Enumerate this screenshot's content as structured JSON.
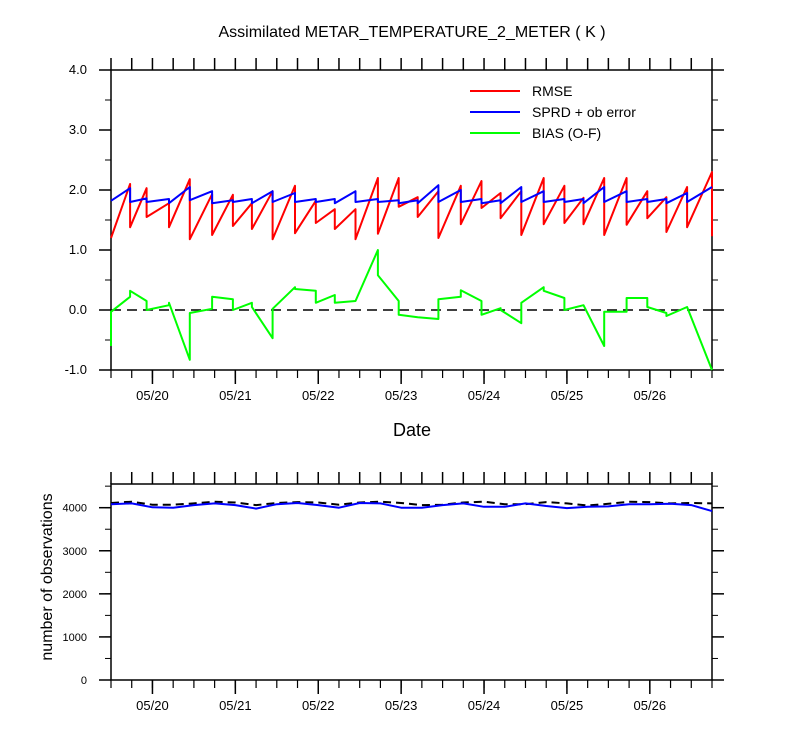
{
  "chart_data": [
    {
      "type": "line",
      "title": "Assimilated METAR_TEMPERATURE_2_METER ( K )",
      "xlabel": "Date",
      "ylabel": "",
      "ylim": [
        -1.0,
        4.0
      ],
      "xlim": [
        -0.5,
        6.75
      ],
      "yticks": [
        "4.0",
        "3.0",
        "2.0",
        "1.0",
        "0.0",
        "-1.0"
      ],
      "ytick_values": [
        4,
        3,
        2,
        1,
        0,
        -1
      ],
      "xtick_labels": [
        "05/20",
        "05/21",
        "05/22",
        "05/23",
        "05/24",
        "05/25",
        "05/26"
      ],
      "xtick_values": [
        0,
        1,
        2,
        3,
        4,
        5,
        6
      ],
      "legend_position": "top-right",
      "colors": {
        "RMSE": "#ff0000",
        "SPRD": "#0000ff",
        "BIAS": "#00ff00",
        "zero_line": "#000000"
      },
      "series": [
        {
          "name": "RMSE",
          "color": "#ff0000",
          "points": [
            [
              -0.5,
              1.2
            ],
            [
              -0.27,
              2.1
            ],
            [
              -0.27,
              1.38
            ],
            [
              -0.07,
              2.03
            ],
            [
              -0.07,
              1.55
            ],
            [
              0.2,
              1.78
            ],
            [
              0.2,
              1.38
            ],
            [
              0.45,
              2.18
            ],
            [
              0.45,
              1.18
            ],
            [
              0.72,
              1.93
            ],
            [
              0.72,
              1.25
            ],
            [
              0.97,
              1.92
            ],
            [
              0.97,
              1.4
            ],
            [
              1.2,
              1.78
            ],
            [
              1.2,
              1.35
            ],
            [
              1.45,
              1.98
            ],
            [
              1.45,
              1.18
            ],
            [
              1.72,
              2.07
            ],
            [
              1.72,
              1.28
            ],
            [
              1.97,
              1.82
            ],
            [
              1.97,
              1.45
            ],
            [
              2.2,
              1.68
            ],
            [
              2.2,
              1.35
            ],
            [
              2.45,
              1.68
            ],
            [
              2.45,
              1.18
            ],
            [
              2.72,
              2.2
            ],
            [
              2.72,
              1.27
            ],
            [
              2.97,
              2.2
            ],
            [
              2.97,
              1.72
            ],
            [
              3.2,
              1.88
            ],
            [
              3.2,
              1.55
            ],
            [
              3.45,
              1.98
            ],
            [
              3.45,
              1.2
            ],
            [
              3.72,
              2.07
            ],
            [
              3.72,
              1.43
            ],
            [
              3.97,
              2.15
            ],
            [
              3.97,
              1.7
            ],
            [
              4.2,
              1.95
            ],
            [
              4.2,
              1.53
            ],
            [
              4.45,
              1.98
            ],
            [
              4.45,
              1.25
            ],
            [
              4.72,
              2.2
            ],
            [
              4.72,
              1.43
            ],
            [
              4.97,
              2.07
            ],
            [
              4.97,
              1.45
            ],
            [
              5.2,
              1.87
            ],
            [
              5.2,
              1.43
            ],
            [
              5.45,
              2.2
            ],
            [
              5.45,
              1.25
            ],
            [
              5.72,
              2.2
            ],
            [
              5.72,
              1.42
            ],
            [
              5.97,
              1.98
            ],
            [
              5.97,
              1.53
            ],
            [
              6.2,
              1.88
            ],
            [
              6.2,
              1.3
            ],
            [
              6.45,
              2.05
            ],
            [
              6.45,
              1.38
            ],
            [
              6.75,
              2.3
            ],
            [
              6.75,
              1.23
            ]
          ]
        },
        {
          "name": "SPRD + ob error",
          "color": "#0000ff",
          "points": [
            [
              -0.5,
              1.82
            ],
            [
              -0.27,
              2.03
            ],
            [
              -0.27,
              1.8
            ],
            [
              -0.07,
              1.86
            ],
            [
              -0.07,
              1.8
            ],
            [
              0.2,
              1.85
            ],
            [
              0.2,
              1.78
            ],
            [
              0.45,
              2.05
            ],
            [
              0.45,
              1.83
            ],
            [
              0.72,
              1.98
            ],
            [
              0.72,
              1.78
            ],
            [
              0.97,
              1.83
            ],
            [
              0.97,
              1.8
            ],
            [
              1.2,
              1.85
            ],
            [
              1.2,
              1.78
            ],
            [
              1.45,
              1.98
            ],
            [
              1.45,
              1.8
            ],
            [
              1.72,
              1.95
            ],
            [
              1.72,
              1.8
            ],
            [
              1.97,
              1.85
            ],
            [
              1.97,
              1.8
            ],
            [
              2.2,
              1.85
            ],
            [
              2.2,
              1.78
            ],
            [
              2.45,
              1.98
            ],
            [
              2.45,
              1.8
            ],
            [
              2.72,
              1.85
            ],
            [
              2.72,
              1.8
            ],
            [
              2.97,
              1.83
            ],
            [
              2.97,
              1.78
            ],
            [
              3.2,
              1.83
            ],
            [
              3.2,
              1.78
            ],
            [
              3.45,
              2.08
            ],
            [
              3.45,
              1.8
            ],
            [
              3.72,
              2.0
            ],
            [
              3.72,
              1.8
            ],
            [
              3.97,
              1.85
            ],
            [
              3.97,
              1.78
            ],
            [
              4.2,
              1.83
            ],
            [
              4.2,
              1.78
            ],
            [
              4.45,
              2.05
            ],
            [
              4.45,
              1.8
            ],
            [
              4.72,
              1.98
            ],
            [
              4.72,
              1.8
            ],
            [
              4.97,
              1.85
            ],
            [
              4.97,
              1.8
            ],
            [
              5.2,
              1.85
            ],
            [
              5.2,
              1.78
            ],
            [
              5.45,
              2.05
            ],
            [
              5.45,
              1.8
            ],
            [
              5.72,
              1.98
            ],
            [
              5.72,
              1.8
            ],
            [
              5.97,
              1.85
            ],
            [
              5.97,
              1.8
            ],
            [
              6.2,
              1.85
            ],
            [
              6.2,
              1.78
            ],
            [
              6.45,
              1.95
            ],
            [
              6.45,
              1.8
            ],
            [
              6.75,
              2.05
            ]
          ]
        },
        {
          "name": "BIAS (O-F)",
          "color": "#00ff00",
          "points": [
            [
              -0.5,
              -0.6
            ],
            [
              -0.5,
              -0.03
            ],
            [
              -0.27,
              0.22
            ],
            [
              -0.27,
              0.32
            ],
            [
              -0.07,
              0.15
            ],
            [
              -0.07,
              0.0
            ],
            [
              0.2,
              0.08
            ],
            [
              0.2,
              0.12
            ],
            [
              0.45,
              -0.83
            ],
            [
              0.45,
              -0.05
            ],
            [
              0.72,
              0.02
            ],
            [
              0.72,
              0.22
            ],
            [
              0.97,
              0.18
            ],
            [
              0.97,
              0.0
            ],
            [
              1.2,
              0.12
            ],
            [
              1.2,
              0.05
            ],
            [
              1.45,
              -0.47
            ],
            [
              1.45,
              0.02
            ],
            [
              1.72,
              0.38
            ],
            [
              1.72,
              0.35
            ],
            [
              1.97,
              0.32
            ],
            [
              1.97,
              0.12
            ],
            [
              2.2,
              0.25
            ],
            [
              2.2,
              0.12
            ],
            [
              2.45,
              0.15
            ],
            [
              2.45,
              0.15
            ],
            [
              2.72,
              1.0
            ],
            [
              2.72,
              0.58
            ],
            [
              2.97,
              0.15
            ],
            [
              2.97,
              -0.08
            ],
            [
              3.2,
              -0.12
            ],
            [
              3.45,
              -0.15
            ],
            [
              3.45,
              0.18
            ],
            [
              3.72,
              0.22
            ],
            [
              3.72,
              0.33
            ],
            [
              3.97,
              0.15
            ],
            [
              3.97,
              -0.08
            ],
            [
              4.2,
              0.03
            ],
            [
              4.2,
              0.0
            ],
            [
              4.45,
              -0.22
            ],
            [
              4.45,
              0.12
            ],
            [
              4.72,
              0.38
            ],
            [
              4.72,
              0.32
            ],
            [
              4.97,
              0.2
            ],
            [
              4.97,
              0.0
            ],
            [
              5.2,
              0.08
            ],
            [
              5.2,
              0.08
            ],
            [
              5.45,
              -0.6
            ],
            [
              5.45,
              -0.03
            ],
            [
              5.72,
              -0.03
            ],
            [
              5.72,
              0.2
            ],
            [
              5.97,
              0.2
            ],
            [
              5.97,
              0.05
            ],
            [
              6.2,
              -0.05
            ],
            [
              6.2,
              -0.1
            ],
            [
              6.45,
              0.05
            ],
            [
              6.75,
              -1.0
            ]
          ]
        }
      ]
    },
    {
      "type": "line",
      "title": "",
      "xlabel": "",
      "ylabel": "number of observations",
      "ylim": [
        0,
        4550
      ],
      "xlim": [
        -0.5,
        6.75
      ],
      "yticks": [
        "0",
        "1000",
        "2000",
        "3000",
        "4000"
      ],
      "ytick_values": [
        0,
        1000,
        2000,
        3000,
        4000
      ],
      "xtick_labels": [
        "05/20",
        "05/21",
        "05/22",
        "05/23",
        "05/24",
        "05/25",
        "05/26"
      ],
      "xtick_values": [
        0,
        1,
        2,
        3,
        4,
        5,
        6
      ],
      "series": [
        {
          "role": "possible",
          "color": "#000000",
          "dash": true,
          "points": [
            [
              -0.5,
              4110
            ],
            [
              -0.25,
              4140
            ],
            [
              0,
              4070
            ],
            [
              0.25,
              4070
            ],
            [
              0.5,
              4100
            ],
            [
              0.75,
              4140
            ],
            [
              1.0,
              4120
            ],
            [
              1.25,
              4060
            ],
            [
              1.5,
              4110
            ],
            [
              1.75,
              4130
            ],
            [
              2.0,
              4120
            ],
            [
              2.25,
              4070
            ],
            [
              2.5,
              4120
            ],
            [
              2.75,
              4140
            ],
            [
              3.0,
              4110
            ],
            [
              3.25,
              4060
            ],
            [
              3.5,
              4070
            ],
            [
              3.75,
              4120
            ],
            [
              4.0,
              4140
            ],
            [
              4.25,
              4080
            ],
            [
              4.5,
              4080
            ],
            [
              4.75,
              4130
            ],
            [
              5.0,
              4100
            ],
            [
              5.25,
              4050
            ],
            [
              5.5,
              4090
            ],
            [
              5.75,
              4140
            ],
            [
              6.0,
              4130
            ],
            [
              6.25,
              4100
            ],
            [
              6.5,
              4110
            ],
            [
              6.75,
              4100
            ]
          ]
        },
        {
          "role": "used",
          "color": "#0000ff",
          "dash": false,
          "points": [
            [
              -0.5,
              4080
            ],
            [
              -0.25,
              4100
            ],
            [
              0,
              4010
            ],
            [
              0.25,
              4000
            ],
            [
              0.5,
              4060
            ],
            [
              0.75,
              4100
            ],
            [
              1.0,
              4060
            ],
            [
              1.25,
              3980
            ],
            [
              1.5,
              4080
            ],
            [
              1.75,
              4110
            ],
            [
              2.0,
              4060
            ],
            [
              2.25,
              4000
            ],
            [
              2.5,
              4110
            ],
            [
              2.75,
              4100
            ],
            [
              3.0,
              4000
            ],
            [
              3.25,
              4000
            ],
            [
              3.5,
              4060
            ],
            [
              3.75,
              4100
            ],
            [
              4.0,
              4020
            ],
            [
              4.25,
              4020
            ],
            [
              4.5,
              4100
            ],
            [
              4.75,
              4040
            ],
            [
              5.0,
              3990
            ],
            [
              5.25,
              4020
            ],
            [
              5.5,
              4030
            ],
            [
              5.75,
              4080
            ],
            [
              6.0,
              4080
            ],
            [
              6.25,
              4090
            ],
            [
              6.5,
              4060
            ],
            [
              6.75,
              3920
            ]
          ]
        }
      ]
    }
  ]
}
